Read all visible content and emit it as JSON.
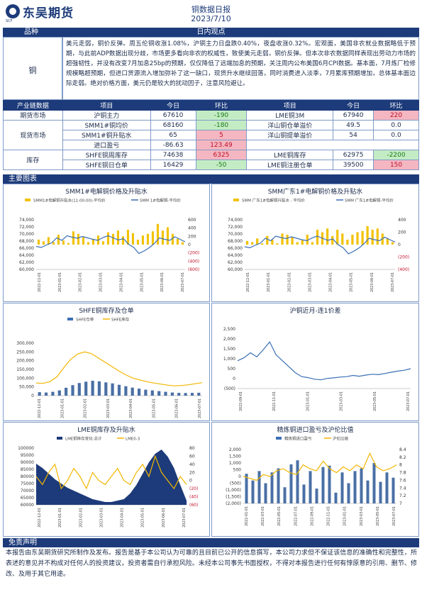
{
  "header": {
    "logo_text": "东吴期货",
    "logo_sub": "SCF",
    "title": "铜数据日报",
    "date": "2023/7/10"
  },
  "view": {
    "label_col": "品种",
    "title": "日内观点",
    "commodity": "铜",
    "text": "美元走弱，铜价反弹。周五伦铜收涨1.08%，沪铜主力日盘跌0.40%，夜盘收涨0.32%。宏观面，美国非农就业数据略低于预期，与此前ADP数据出现分歧，市场更多看向非农的权威性，致使美元走弱，铜价反弹。但本次非农数据同样表现出劳动力市场的超强韧性，并没有改变7月加息25bp的预期，仅仅降低了远端加息的预期，关注周内公布美国6月CPI数据。基本面，7月炼厂检修规模略超预期，但进口货源流入增加弥补了这一缺口，现货升水继续回落，同时消费进入淡季，7月累库预期增加，总体基本面边际走弱。绝对价格方面，美元仍是较大的扰动因子，注意风险避让。"
  },
  "table": {
    "headers": [
      "产业链数据",
      "项目",
      "今日",
      "环比",
      "项目",
      "今日",
      "环比"
    ],
    "groups": {
      "futures": "期货市场",
      "spot": "现货市场",
      "inventory": "库存"
    },
    "rows": [
      [
        "沪铜主力",
        "67610",
        "-190",
        "LME铜3M",
        "67940",
        "220"
      ],
      [
        "SMM1#铜均价",
        "68160",
        "-180",
        "洋山铜仓单溢价",
        "49.5",
        "0.0"
      ],
      [
        "SMM1#铜升贴水",
        "65",
        "5",
        "洋山铜提单溢价",
        "54",
        "0.0"
      ],
      [
        "进口盈亏",
        "-86.63",
        "123.49",
        "",
        "",
        ""
      ],
      [
        "SHFE铜周库存",
        "74638",
        "6325",
        "LME铜库存",
        "62975",
        "-2200"
      ],
      [
        "SHFE铜日仓单",
        "16429",
        "-50",
        "LME铜注册仓单",
        "39500",
        "150"
      ]
    ]
  },
  "charts_section": "主要图表",
  "disclaimer": {
    "title": "免责声明",
    "text": "本报告由东吴期货研究所制作及发布。报告是基于本公司认为可靠的且目前已公开的信息撰写，本公司力求但不保证该信息的准确性和完整性，所表述的意见并不构成对任何人的投资建议，投资者需自行承担风险。未经本公司事先书面授权，不得对本报告进行任何有悖原意的引用、删节、修改、及用于其它用途。"
  },
  "colors": {
    "navy": "#1d3b7a",
    "bar_yellow": "#f2c200",
    "line_blue": "#3a6fb5",
    "line_orange": "#f2b600"
  },
  "chart_data": [
    {
      "type": "line",
      "title": "SMM1#电解铜价格及升贴水",
      "legend": [
        "SMM1#电解铜升贴水(11:00:00)-平均价",
        "SMM 1#电解铜-平均价"
      ],
      "y_ticks": [
        "74,000",
        "72,000",
        "70,000",
        "68,000",
        "66,000",
        "64,000",
        "62,000",
        "60,000"
      ],
      "y2_ticks": [
        "600",
        "400",
        "200",
        "0",
        "(200)",
        "(400)",
        "(600)"
      ],
      "x_ticks": [
        "2022-12-01",
        "2023-01-01",
        "2023-02-01",
        "2023-03-01",
        "2023-04-01",
        "2023-05-01",
        "2023-06-01",
        "2023-07-01"
      ],
      "ylim": [
        60000,
        74000
      ],
      "y2lim": [
        -600,
        600
      ],
      "line": [
        66500,
        66200,
        66900,
        67500,
        68900,
        68200,
        69500,
        69100,
        68800,
        69300,
        68900,
        68500,
        68200,
        69000,
        69500,
        68900,
        68300,
        68700,
        67100,
        66200,
        64500,
        65200,
        66100,
        67300,
        68900,
        68500,
        68200,
        69200,
        68500,
        67800
      ],
      "bars": [
        120,
        80,
        180,
        60,
        240,
        100,
        40,
        320,
        260,
        180,
        60,
        140,
        220,
        80,
        300,
        260,
        340,
        200,
        360,
        280,
        120,
        220,
        260,
        320,
        500,
        340,
        420,
        260,
        140,
        60
      ]
    },
    {
      "type": "line",
      "title": "SMM广东1#电解铜价格及升贴水",
      "legend": [
        "SMM 广东1#电解铜升贴水 - 平均价",
        "SMM 广东1#电解铜-平均价"
      ],
      "y_ticks": [
        "74,000",
        "72,000",
        "70,000",
        "68,000",
        "66,000",
        "64,000",
        "62,000",
        "60,000"
      ],
      "y2_ticks": [
        "400",
        "200",
        "0",
        "(200)",
        "(400)"
      ],
      "x_ticks": [
        "2022-12-01",
        "2023-01-01",
        "2023-02-01",
        "2023-03-01",
        "2023-04-01",
        "2023-05-01",
        "2023-06-01",
        "2023-07-01"
      ],
      "ylim": [
        60000,
        74000
      ],
      "y2lim": [
        -400,
        400
      ],
      "line": [
        66400,
        66100,
        66800,
        67400,
        68800,
        68100,
        69400,
        69000,
        68700,
        69200,
        68800,
        68400,
        68100,
        68900,
        69400,
        68800,
        68200,
        68600,
        67000,
        66100,
        64400,
        65100,
        66000,
        67200,
        68800,
        68400,
        68100,
        69100,
        68400,
        67700
      ],
      "bars": [
        60,
        40,
        100,
        20,
        140,
        80,
        20,
        180,
        160,
        120,
        40,
        80,
        160,
        40,
        240,
        200,
        260,
        140,
        240,
        180,
        80,
        160,
        200,
        220,
        300,
        240,
        260,
        180,
        100,
        40
      ]
    },
    {
      "type": "bar",
      "title": "SHFE铜库存及仓单",
      "legend": [
        "SHFE仓单",
        "SHFE库存"
      ],
      "y_ticks": [
        "300,000",
        "250,000",
        "200,000",
        "150,000",
        "100,000",
        "50,000",
        "0"
      ],
      "x_ticks": [
        "2022-12-01",
        "2023-01-01",
        "2023-02-01",
        "2023-03-01",
        "2023-04-01",
        "2023-05-01",
        "2023-06-01",
        "2023-07-01"
      ],
      "ylim": [
        0,
        300000
      ],
      "line": [
        72000,
        70000,
        80000,
        108000,
        160000,
        208000,
        238000,
        250000,
        240000,
        215000,
        190000,
        165000,
        140000,
        118000,
        100000,
        90000,
        80000,
        72000,
        66000,
        60000,
        56000,
        58000,
        62000,
        68000,
        74000
      ],
      "bars": [
        20000,
        18000,
        22000,
        30000,
        45000,
        60000,
        72000,
        80000,
        85000,
        82000,
        76000,
        70000,
        62000,
        54000,
        46000,
        40000,
        34000,
        30000,
        26000,
        22000,
        18000,
        16000,
        15000,
        16000,
        16429
      ]
    },
    {
      "type": "line",
      "title": "沪铜近月-连1价差",
      "y_ticks": [
        "2,500",
        "2,000",
        "1,500",
        "1,000",
        "500",
        "0",
        "(500)"
      ],
      "x_ticks": [
        "2022-09-01",
        "2022-11-01",
        "2023-01-01",
        "2023-03-01",
        "2023-05-01",
        "2023-07-01"
      ],
      "ylim": [
        -500,
        2500
      ],
      "line": [
        900,
        1050,
        1300,
        1100,
        1450,
        1850,
        1200,
        900,
        600,
        300,
        100,
        50,
        -30,
        -60,
        10,
        40,
        80,
        100,
        160,
        120,
        180,
        220,
        200,
        260,
        320,
        380,
        420,
        500
      ]
    },
    {
      "type": "area",
      "title": "LME铜库存及升贴水",
      "legend": [
        "LME铜库存变化:总计",
        "LME0-3"
      ],
      "y_ticks": [
        "100000",
        "95000",
        "90000",
        "85000",
        "80000",
        "75000",
        "70000",
        "65000",
        "60000"
      ],
      "y2_ticks": [
        "80",
        "60",
        "40",
        "20",
        "0",
        "(20)",
        "(40)",
        "(60)"
      ],
      "x_ticks": [
        "2022-12-01",
        "2023-01-01",
        "2023-02-01",
        "2023-03-01",
        "2023-04-01",
        "2023-05-01",
        "2023-06-01",
        "2023-07-01"
      ],
      "ylim": [
        60000,
        100000
      ],
      "y2lim": [
        -60,
        80
      ],
      "area": [
        89000,
        86000,
        82000,
        78000,
        75000,
        72000,
        70000,
        68000,
        66000,
        64000,
        63000,
        62000,
        62000,
        63000,
        64000,
        68000,
        74000,
        82000,
        90000,
        96000,
        99000,
        94000,
        86000,
        74000,
        63000
      ],
      "line": [
        10,
        -10,
        20,
        40,
        -20,
        0,
        30,
        10,
        -20,
        20,
        0,
        -10,
        10,
        30,
        0,
        -10,
        20,
        40,
        10,
        60,
        20,
        0,
        -20,
        10,
        -10
      ]
    },
    {
      "type": "bar",
      "title": "精炼铜进口盈亏及沪伦比值",
      "legend": [
        "精炼铜进口盈亏",
        "沪伦比值"
      ],
      "y_ticks": [
        "2,000",
        "1,500",
        "1,000",
        "500",
        "0",
        "(500)",
        "(1,000)",
        "(1,500)",
        "(2,000)"
      ],
      "y2_ticks": [
        "8.4",
        "8.2",
        "8",
        "7.8",
        "7.6",
        "7.4",
        "7.2",
        "7"
      ],
      "x_ticks": [
        "2022-01-01",
        "2022-03-01",
        "2022-05-01",
        "2022-07-01",
        "2022-09-01",
        "2022-11-01",
        "2023-01-01",
        "2023-03-01",
        "2023-05-01",
        "2023-07-01"
      ],
      "ylim": [
        -2000,
        2000
      ],
      "y2lim": [
        7,
        8.4
      ],
      "line": [
        7.7,
        7.65,
        7.6,
        7.75,
        7.7,
        7.85,
        7.9,
        7.8,
        7.75,
        8.0,
        7.9,
        7.85,
        8.1,
        7.9,
        7.8,
        7.95,
        7.85,
        8.0,
        7.9,
        8.3,
        7.95,
        7.85,
        7.9,
        8.0
      ],
      "bars": [
        200,
        -300,
        400,
        -500,
        300,
        600,
        -800,
        900,
        1200,
        -600,
        400,
        -900,
        700,
        800,
        -1200,
        300,
        -500,
        400,
        600,
        -300,
        1000,
        -400,
        300,
        -87
      ]
    }
  ]
}
